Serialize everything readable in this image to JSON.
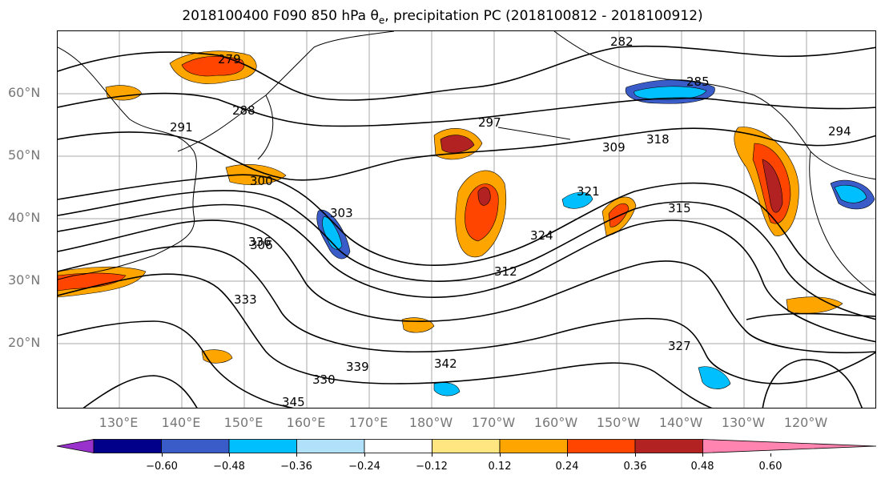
{
  "title": {
    "prefix": "2018100400 F090 850 hPa θ",
    "subscript": "e",
    "suffix": ", precipitation PC (2018100812 - 2018100912)"
  },
  "lat_labels": [
    "60°N",
    "50°N",
    "40°N",
    "30°N",
    "20°N"
  ],
  "lon_labels": [
    "130°E",
    "140°E",
    "150°E",
    "160°E",
    "170°E",
    "180°W",
    "170°W",
    "160°W",
    "150°W",
    "140°W",
    "130°W",
    "120°W"
  ],
  "contour_labels": [
    "282",
    "279",
    "285",
    "288",
    "291",
    "297",
    "300",
    "303",
    "306",
    "309",
    "312",
    "315",
    "318",
    "321",
    "324",
    "327",
    "330",
    "333",
    "336",
    "339",
    "342",
    "345",
    "294"
  ],
  "colorbar": {
    "ticks": [
      "−0.60",
      "−0.48",
      "−0.36",
      "−0.24",
      "−0.12",
      "0.12",
      "0.24",
      "0.36",
      "0.48",
      "0.60"
    ],
    "colors": [
      "#9932cc",
      "#00008b",
      "#3a5cc9",
      "#00bfff",
      "#b0e0fa",
      "#ffffff",
      "#ffe680",
      "#ffa500",
      "#ff4500",
      "#b22222",
      "#ff85b0"
    ]
  }
}
